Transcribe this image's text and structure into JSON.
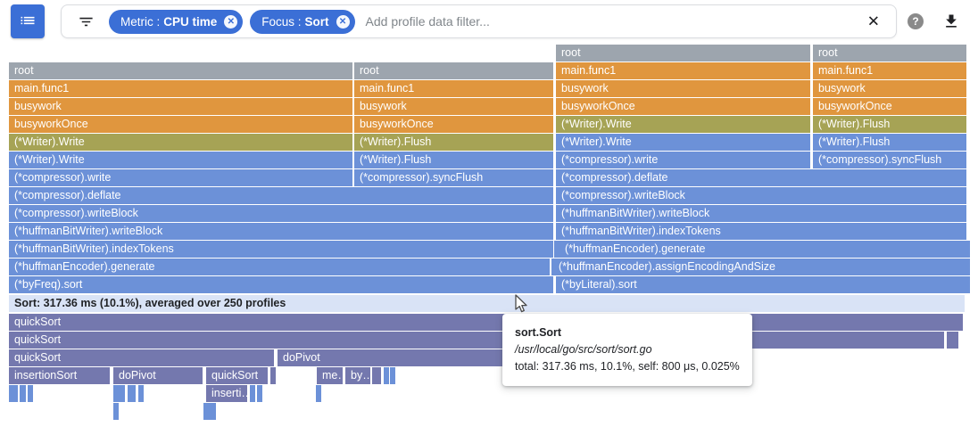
{
  "toolbar": {
    "menu_button_icon": "list-icon",
    "filter_bar": {
      "filter_icon": "filter-list-icon",
      "chips": [
        {
          "category": "Metric",
          "value": "CPU time",
          "remove_icon": "close-circle-icon"
        },
        {
          "category": "Focus",
          "value": "Sort",
          "remove_icon": "close-circle-icon"
        }
      ],
      "placeholder": "Add profile data filter...",
      "clear_icon_label": "✕"
    },
    "help_label": "?",
    "download_icon": "download-icon"
  },
  "selected_frame_summary": "Sort: 317.36 ms (10.1%), averaged over 250 profiles",
  "tooltip": {
    "title": "sort.Sort",
    "path": "/usr/local/go/src/sort/sort.go",
    "stats": "total: 317.36 ms, 10.1%, self: 800 μs, 0.025%"
  },
  "colors": {
    "gray": "#9da5ae",
    "orange": "#e0963e",
    "olive": "#a6a355",
    "blue": "#6c91d8",
    "purple": "#7478ae",
    "selected": "#d9e3f6",
    "chip_blue": "#3b6fd6",
    "toolbar_border": "#dadce0",
    "placeholder_gray": "#80868b",
    "help_gray": "#8a8a8a"
  },
  "flame": {
    "bar_fields": [
      "label",
      "x",
      "y",
      "w",
      "color"
    ],
    "groups": {
      "left_stack": [
        [
          "root",
          10,
          70,
          385,
          "gray"
        ],
        [
          "root",
          397,
          70,
          223,
          "gray"
        ],
        [
          "main.func1",
          10,
          90,
          385,
          "orange"
        ],
        [
          "main.func1",
          397,
          90,
          223,
          "orange"
        ],
        [
          "busywork",
          10,
          110,
          385,
          "orange"
        ],
        [
          "busywork",
          397,
          110,
          223,
          "orange"
        ],
        [
          "busyworkOnce",
          10,
          130,
          385,
          "orange"
        ],
        [
          "busyworkOnce",
          397,
          130,
          223,
          "orange"
        ],
        [
          "(*Writer).Write",
          10,
          150,
          385,
          "olive"
        ],
        [
          "(*Writer).Flush",
          397,
          150,
          223,
          "olive"
        ],
        [
          "(*Writer).Write",
          10,
          170,
          385,
          "blue"
        ],
        [
          "(*Writer).Flush",
          397,
          170,
          223,
          "blue"
        ],
        [
          "(*compressor).write",
          10,
          190,
          385,
          "blue"
        ],
        [
          "(*compressor).syncFlush",
          397,
          190,
          223,
          "blue"
        ],
        [
          "(*compressor).deflate",
          10,
          210,
          610,
          "blue"
        ],
        [
          "(*compressor).writeBlock",
          10,
          230,
          610,
          "blue"
        ],
        [
          "(*huffmanBitWriter).writeBlock",
          10,
          250,
          610,
          "blue"
        ],
        [
          "(*huffmanBitWriter).indexTokens",
          10,
          270,
          610,
          "blue"
        ],
        [
          "(*huffmanEncoder).generate",
          10,
          290,
          606,
          "blue"
        ],
        [
          "",
          618,
          290,
          2,
          "blue"
        ],
        [
          "(*byFreq).sort",
          10,
          310,
          610,
          "blue"
        ]
      ],
      "right_stack": [
        [
          "root",
          623,
          50,
          285,
          "gray"
        ],
        [
          "root",
          911,
          50,
          172,
          "gray"
        ],
        [
          "main.func1",
          623,
          70,
          285,
          "orange"
        ],
        [
          "main.func1",
          911,
          70,
          172,
          "orange"
        ],
        [
          "busywork",
          623,
          90,
          285,
          "orange"
        ],
        [
          "busywork",
          911,
          90,
          172,
          "orange"
        ],
        [
          "busyworkOnce",
          623,
          110,
          285,
          "orange"
        ],
        [
          "busyworkOnce",
          911,
          110,
          172,
          "orange"
        ],
        [
          "(*Writer).Write",
          623,
          130,
          285,
          "olive"
        ],
        [
          "(*Writer).Flush",
          911,
          130,
          172,
          "olive"
        ],
        [
          "(*Writer).Write",
          623,
          150,
          285,
          "blue"
        ],
        [
          "(*Writer).Flush",
          911,
          150,
          172,
          "blue"
        ],
        [
          "(*compressor).write",
          623,
          170,
          285,
          "blue"
        ],
        [
          "(*compressor).syncFlush",
          911,
          170,
          172,
          "blue"
        ],
        [
          "(*compressor).deflate",
          623,
          190,
          460,
          "blue"
        ],
        [
          "(*compressor).writeBlock",
          623,
          210,
          460,
          "blue"
        ],
        [
          "(*huffmanBitWriter).writeBlock",
          623,
          230,
          460,
          "blue"
        ],
        [
          "(*huffmanBitWriter).indexTokens",
          623,
          250,
          460,
          "blue"
        ],
        [
          "",
          621,
          270,
          3,
          "blue"
        ],
        [
          "(*huffmanEncoder).generate",
          627,
          270,
          460,
          "blue"
        ],
        [
          "(*huffmanEncoder).assignEncodingAndSize",
          620,
          290,
          467,
          "blue"
        ],
        [
          "(*byLiteral).sort",
          623,
          310,
          464,
          "blue"
        ]
      ],
      "selected_row": [
        [
          "Sort: 317.36 ms (10.1%), averaged over 250 profiles",
          10,
          331,
          1071,
          "selected"
        ]
      ],
      "sort_children": [
        [
          "quickSort",
          10,
          352,
          1069,
          "purple"
        ],
        [
          "quickSort",
          10,
          372,
          1048,
          "purple"
        ],
        [
          "",
          1061,
          372,
          13,
          "purple"
        ],
        [
          "quickSort",
          10,
          392,
          297,
          "purple"
        ],
        [
          "doPivot",
          311,
          392,
          479,
          "purple"
        ],
        [
          "insertionSort",
          10,
          412,
          113,
          "purple"
        ],
        [
          "doPivot",
          127,
          412,
          100,
          "purple"
        ],
        [
          "quickSort",
          231,
          412,
          69,
          "purple"
        ],
        [
          "",
          303,
          412,
          5,
          "purple"
        ],
        [
          "me…",
          355,
          412,
          29,
          "purple"
        ],
        [
          "by…",
          387,
          412,
          28,
          "purple"
        ],
        [
          "",
          417,
          412,
          10,
          "purple"
        ],
        [
          "",
          430,
          412,
          4,
          "blue"
        ],
        [
          "",
          437,
          412,
          5,
          "blue"
        ],
        [
          "",
          632,
          412,
          4,
          "blue"
        ],
        [
          "",
          638,
          412,
          5,
          "blue"
        ],
        [
          "",
          754,
          412,
          3,
          "blue"
        ],
        [
          "",
          10,
          432,
          10,
          "blue"
        ],
        [
          "",
          22,
          432,
          7,
          "blue"
        ],
        [
          "",
          31,
          432,
          6,
          "blue"
        ],
        [
          "",
          127,
          432,
          13,
          "blue"
        ],
        [
          "",
          143,
          432,
          9,
          "blue"
        ],
        [
          "",
          155,
          432,
          5,
          "blue"
        ],
        [
          "inserti…",
          231,
          432,
          46,
          "purple"
        ],
        [
          "",
          280,
          432,
          6,
          "blue"
        ],
        [
          "",
          288,
          432,
          4,
          "blue"
        ],
        [
          "",
          354,
          432,
          4,
          "blue"
        ],
        [
          "",
          127,
          452,
          3,
          "blue"
        ],
        [
          "",
          228,
          452,
          4,
          "blue"
        ],
        [
          "",
          234,
          452,
          8,
          "blue"
        ]
      ]
    }
  }
}
